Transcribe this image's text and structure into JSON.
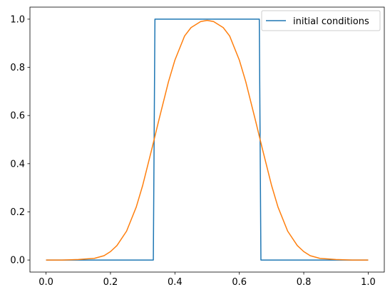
{
  "chart_data": {
    "type": "line",
    "xlim": [
      -0.05,
      1.05
    ],
    "ylim": [
      -0.05,
      1.05
    ],
    "xticks": [
      0.0,
      0.2,
      0.4,
      0.6,
      0.8,
      1.0
    ],
    "xtick_labels": [
      "0.0",
      "0.2",
      "0.4",
      "0.6",
      "0.8",
      "1.0"
    ],
    "yticks": [
      0.0,
      0.2,
      0.4,
      0.6,
      0.8,
      1.0
    ],
    "ytick_labels": [
      "0.0",
      "0.2",
      "0.4",
      "0.6",
      "0.8",
      "1.0"
    ],
    "grid": false,
    "legend_position": "top-right",
    "series": [
      {
        "name": "initial conditions",
        "color": "#1f77b4",
        "x": [
          0.0,
          0.333,
          0.338,
          0.662,
          0.667,
          1.0
        ],
        "y": [
          0.0,
          0.0,
          1.0,
          1.0,
          0.0,
          0.0
        ]
      },
      {
        "color": "#ff7f0e",
        "x": [
          0.0,
          0.05,
          0.1,
          0.15,
          0.18,
          0.2,
          0.22,
          0.25,
          0.28,
          0.3,
          0.33,
          0.35,
          0.38,
          0.4,
          0.43,
          0.45,
          0.48,
          0.5,
          0.52,
          0.55,
          0.57,
          0.6,
          0.62,
          0.65,
          0.67,
          0.7,
          0.72,
          0.75,
          0.78,
          0.8,
          0.82,
          0.85,
          0.9,
          0.95,
          1.0
        ],
        "y": [
          0.0,
          0.0,
          0.002,
          0.007,
          0.018,
          0.035,
          0.06,
          0.12,
          0.22,
          0.31,
          0.47,
          0.58,
          0.74,
          0.83,
          0.93,
          0.965,
          0.99,
          0.995,
          0.99,
          0.965,
          0.93,
          0.83,
          0.74,
          0.58,
          0.47,
          0.31,
          0.22,
          0.12,
          0.06,
          0.035,
          0.018,
          0.007,
          0.002,
          0.0,
          0.0
        ]
      }
    ]
  }
}
